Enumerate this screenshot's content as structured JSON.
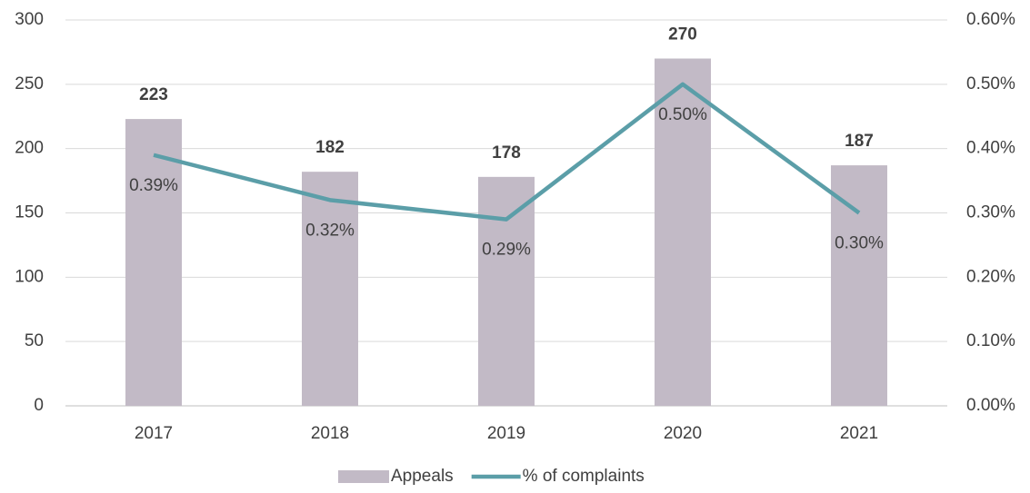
{
  "chart_data": {
    "type": "bar-line",
    "categories": [
      "2017",
      "2018",
      "2019",
      "2020",
      "2021"
    ],
    "series": [
      {
        "name": "Appeals",
        "type": "bar",
        "color": "#c2bac6",
        "values": [
          223,
          182,
          178,
          270,
          187
        ]
      },
      {
        "name": "% of complaints",
        "type": "line",
        "axis": "y2",
        "color": "#5b9ea8",
        "values": [
          0.39,
          0.32,
          0.29,
          0.5,
          0.3
        ],
        "value_labels": [
          "0.39%",
          "0.32%",
          "0.29%",
          "0.50%",
          "0.30%"
        ]
      }
    ],
    "ylim": [
      0,
      300
    ],
    "yticks": [
      0,
      50,
      100,
      150,
      200,
      250,
      300
    ],
    "y2lim": [
      0,
      0.6
    ],
    "y2ticks": [
      {
        "value": 0,
        "label": "0.00%"
      },
      {
        "value": 0.1,
        "label": "0.10%"
      },
      {
        "value": 0.2,
        "label": "0.20%"
      },
      {
        "value": 0.3,
        "label": "0.30%"
      },
      {
        "value": 0.4,
        "label": "0.40%"
      },
      {
        "value": 0.5,
        "label": "0.50%"
      },
      {
        "value": 0.6,
        "label": "0.60%"
      }
    ],
    "grid": true,
    "legend": "bottom"
  }
}
